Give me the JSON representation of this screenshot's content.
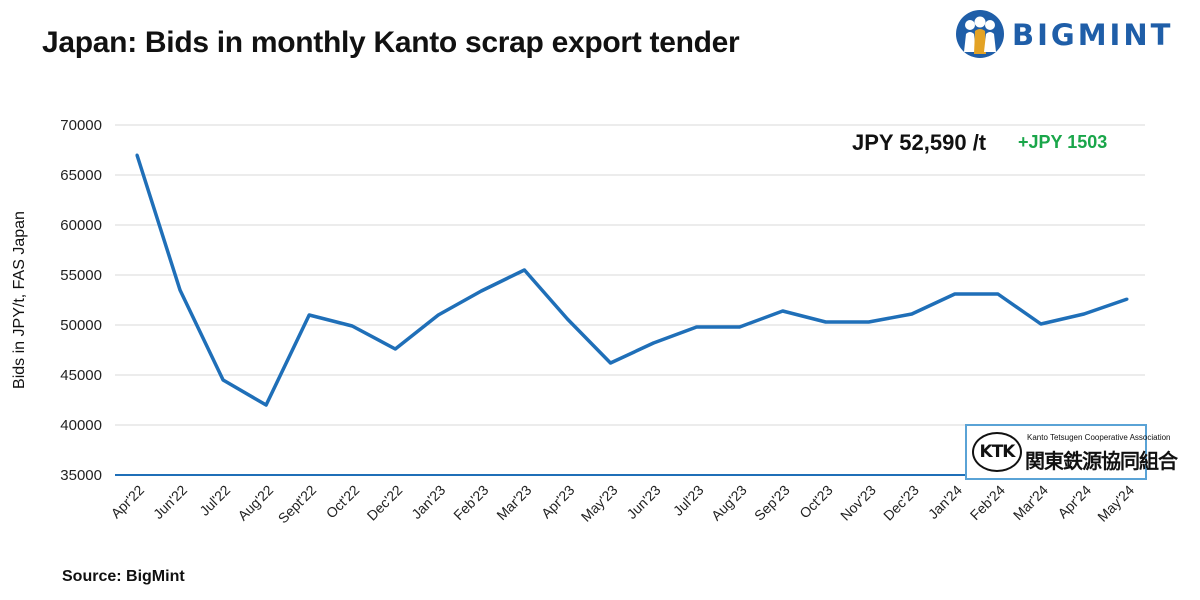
{
  "header": {
    "title": "Japan: Bids in monthly Kanto scrap export tender"
  },
  "brand": {
    "name": "BIGMINT",
    "color": "#1f5ea8"
  },
  "annotation": {
    "price": "JPY 52,590 /t",
    "change": "+JPY 1503",
    "change_color": "#1aa64a"
  },
  "badge": {
    "abbr": "KTK",
    "name_en": "Kanto Tetsugen Cooperative Association",
    "name_jp": "関東鉄源協同組合"
  },
  "footer": {
    "source": "Source: BigMint"
  },
  "chart_data": {
    "type": "line",
    "title": "Japan: Bids in monthly Kanto scrap export tender",
    "xlabel": "",
    "ylabel": "Bids in JPY/t, FAS Japan",
    "ylim": [
      35000,
      70000
    ],
    "yticks": [
      35000,
      40000,
      45000,
      50000,
      55000,
      60000,
      65000,
      70000
    ],
    "grid": true,
    "line_color": "#1f6fb8",
    "categories": [
      "Apr'22",
      "Jun'22",
      "Jul'22",
      "Aug'22",
      "Sept'22",
      "Oct'22",
      "Dec'22",
      "Jan'23",
      "Feb'23",
      "Mar'23",
      "Apr'23",
      "May'23",
      "Jun'23",
      "Jul'23",
      "Aug'23",
      "Sep'23",
      "Oct'23",
      "Nov'23",
      "Dec'23",
      "Jan'24",
      "Feb'24",
      "Mar'24",
      "Apr'24",
      "May'24"
    ],
    "series": [
      {
        "values": [
          67000,
          53500,
          44500,
          42000,
          51000,
          49900,
          47600,
          51000,
          53400,
          55500,
          50600,
          46200,
          48200,
          49800,
          49800,
          51400,
          50300,
          50300,
          51100,
          53100,
          53100,
          50100,
          51100,
          52590
        ]
      }
    ]
  }
}
